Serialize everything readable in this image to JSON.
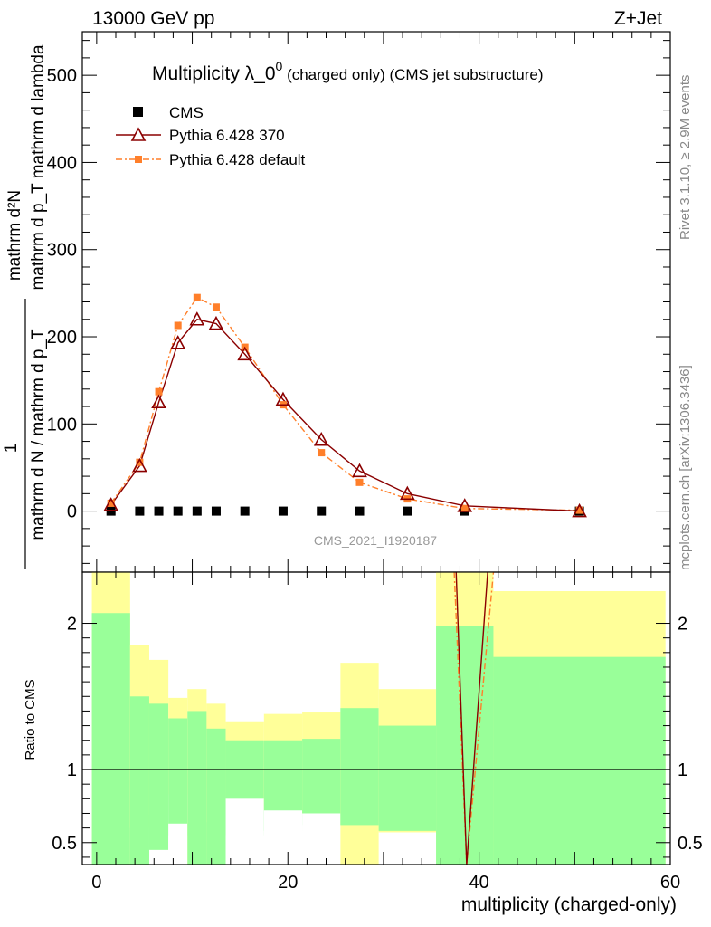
{
  "header": {
    "left": "13000 GeV pp",
    "right": "Z+Jet"
  },
  "side_labels": {
    "top": "Rivet 3.1.10, ≥ 2.9M events",
    "bottom": "mcplots.cern.ch [arXiv:1306.3436]"
  },
  "colors": {
    "cms": "#000000",
    "pythia370": "#8b0000",
    "pythia_default": "#ff7f2a",
    "band_inner": "#99ff99",
    "band_outer": "#ffff99"
  },
  "chart_data": [
    {
      "type": "line",
      "title": "Multiplicity λ_0^0 (charged only) (CMS jet substructure)",
      "title_main": "Multiplicity λ_0",
      "title_sup": "0",
      "title_rest": " (charged only) (CMS jet substructure)",
      "ylabel_top": "mathrm d²N",
      "ylabel_mid": "mathrm d p_T mathrm d lambda",
      "ylabel_left_num": "1",
      "ylabel_left_den": "mathrm d N / mathrm d p_T",
      "watermark": "CMS_2021_I1920187",
      "xlim": [
        -1.5,
        60
      ],
      "ylim": [
        -70,
        550
      ],
      "yticks": [
        0,
        100,
        200,
        300,
        400,
        500
      ],
      "yticklabels": [
        "0",
        "100",
        "200",
        "300",
        "400",
        "500"
      ],
      "legend": [
        "CMS",
        "Pythia 6.428 370",
        "Pythia 6.428 default"
      ],
      "legend_position": "top-left",
      "series": [
        {
          "name": "CMS",
          "marker": "square",
          "x": [
            1.5,
            4.5,
            6.5,
            8.5,
            10.5,
            12.5,
            15.5,
            19.5,
            23.5,
            27.5,
            32.5,
            38.5,
            50.5
          ],
          "y": [
            0,
            0,
            0,
            0,
            0,
            0,
            0,
            0,
            0,
            0,
            0,
            0,
            0
          ]
        },
        {
          "name": "Pythia 6.428 370",
          "marker": "triangle",
          "x": [
            1.5,
            4.5,
            6.5,
            8.5,
            10.5,
            12.5,
            15.5,
            19.5,
            23.5,
            27.5,
            32.5,
            38.5,
            50.5
          ],
          "y": [
            7,
            52,
            125,
            193,
            220,
            215,
            180,
            128,
            82,
            46,
            20,
            6,
            0
          ]
        },
        {
          "name": "Pythia 6.428 default",
          "marker": "square-small",
          "x": [
            1.5,
            4.5,
            6.5,
            8.5,
            10.5,
            12.5,
            15.5,
            19.5,
            23.5,
            27.5,
            32.5,
            38.5,
            50.5
          ],
          "y": [
            9,
            56,
            137,
            213,
            245,
            234,
            188,
            122,
            67,
            33,
            14,
            3,
            1
          ]
        }
      ]
    },
    {
      "type": "area",
      "ylabel": "Ratio to CMS",
      "xlabel": "multiplicity (charged-only)",
      "xlim": [
        -1.5,
        60
      ],
      "ylim": [
        0.35,
        2.35
      ],
      "xticks": [
        0,
        20,
        40,
        60
      ],
      "xticklabels": [
        "0",
        "20",
        "40",
        "60"
      ],
      "yticks": [
        0.5,
        1,
        2
      ],
      "yticklabels": [
        "0.5",
        "1",
        "2"
      ],
      "bins": {
        "edges": [
          -0.5,
          3.5,
          5.5,
          7.5,
          9.5,
          11.5,
          13.5,
          17.5,
          21.5,
          25.5,
          29.5,
          35.5,
          41.5,
          59.5
        ],
        "inner_lo": [
          0.35,
          0.35,
          0.45,
          0.55,
          0.35,
          0.35,
          0.55,
          0.58,
          0.62,
          0.62,
          0.58,
          0.35,
          0.35
        ],
        "inner_hi": [
          2.07,
          1.5,
          1.45,
          1.35,
          1.4,
          1.28,
          1.2,
          1.2,
          1.21,
          1.42,
          1.3,
          1.98,
          1.77
        ],
        "outer_lo": [
          0.35,
          0.6,
          0.69,
          0.83,
          0.35,
          0.64,
          0.8,
          0.72,
          0.7,
          0.35,
          0.35,
          0.35,
          0.35
        ],
        "outer_hi": [
          2.35,
          1.85,
          1.75,
          1.49,
          1.55,
          1.45,
          1.33,
          1.38,
          1.39,
          1.73,
          1.55,
          2.35,
          2.22
        ],
        "white_lo": [
          0.35,
          0.35,
          0.35,
          0.35,
          0.35,
          0.35,
          0.35,
          0.35,
          0.35,
          0.35,
          0.35,
          0.35,
          0.35
        ],
        "white_hi": [
          0.35,
          0.35,
          0.35,
          0.63,
          0.35,
          0.35,
          0.35,
          0.35,
          0.35,
          0.35,
          0.57,
          0.35,
          0.35
        ],
        "white_edge_lo": [
          0.35,
          0.35,
          0.35,
          0.35,
          0.35,
          0.35,
          0.8,
          0.72,
          0.7,
          0.35,
          0.35,
          0.35,
          0.35
        ]
      },
      "series": [
        {
          "name": "Pythia 6.428 370",
          "x": [
            37.6,
            38.7,
            40.9
          ],
          "y": [
            2.35,
            0.35,
            2.35
          ]
        },
        {
          "name": "Pythia 6.428 default",
          "x": [
            37.4,
            38.7,
            41.5
          ],
          "y": [
            2.35,
            0.35,
            2.35
          ]
        }
      ]
    }
  ]
}
